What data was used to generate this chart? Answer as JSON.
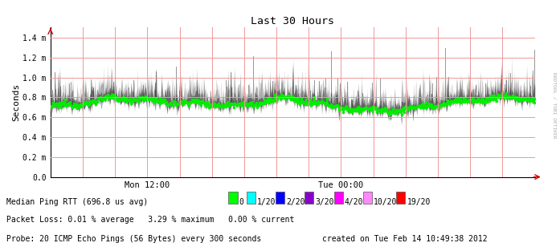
{
  "title": "Last 30 Hours",
  "ylabel": "Seconds",
  "ytick_labels": [
    "0.0",
    "0.2 m",
    "0.4 m",
    "0.6 m",
    "0.8 m",
    "1.0 m",
    "1.2 m",
    "1.4 m"
  ],
  "ytick_values": [
    0.0,
    0.2,
    0.4,
    0.6,
    0.8,
    1.0,
    1.2,
    1.4
  ],
  "ylim": [
    0.0,
    1.5
  ],
  "xlim": [
    0,
    30
  ],
  "x_tick_labels": [
    "Mon 12:00",
    "Tue 00:00"
  ],
  "x_tick_positions": [
    6,
    18
  ],
  "vertical_grid_positions": [
    2,
    4,
    6,
    8,
    10,
    12,
    14,
    16,
    18,
    20,
    22,
    24,
    26,
    28,
    30
  ],
  "horizontal_grid_values": [
    0.0,
    0.2,
    0.4,
    0.6,
    0.8,
    1.0,
    1.2,
    1.4
  ],
  "median_base": 0.685,
  "bg_color": "#ffffff",
  "grid_color": "#ee9999",
  "median_line_color": "#00ee00",
  "arrow_color": "#cc0000",
  "right_text": "RRDTOOL / TOBI OETIKER",
  "legend_items": [
    {
      "label": "0",
      "color": "#00ff00"
    },
    {
      "label": "1/20",
      "color": "#00ffff"
    },
    {
      "label": "2/20",
      "color": "#0000ff"
    },
    {
      "label": "3/20",
      "color": "#8800cc"
    },
    {
      "label": "4/20",
      "color": "#ff00ff"
    },
    {
      "label": "10/20",
      "color": "#ff88ff"
    },
    {
      "label": "19/20",
      "color": "#ff0000"
    }
  ],
  "caption_line1": "Median Ping RTT (696.8 us avg)",
  "caption_line2": "Packet Loss: 0.01 % average   3.29 % maximum   0.00 % current",
  "caption_line3": "Probe: 20 ICMP Echo Pings (56 Bytes) every 300 seconds",
  "caption_line3b": "created on Tue Feb 14 10:49:38 2012"
}
